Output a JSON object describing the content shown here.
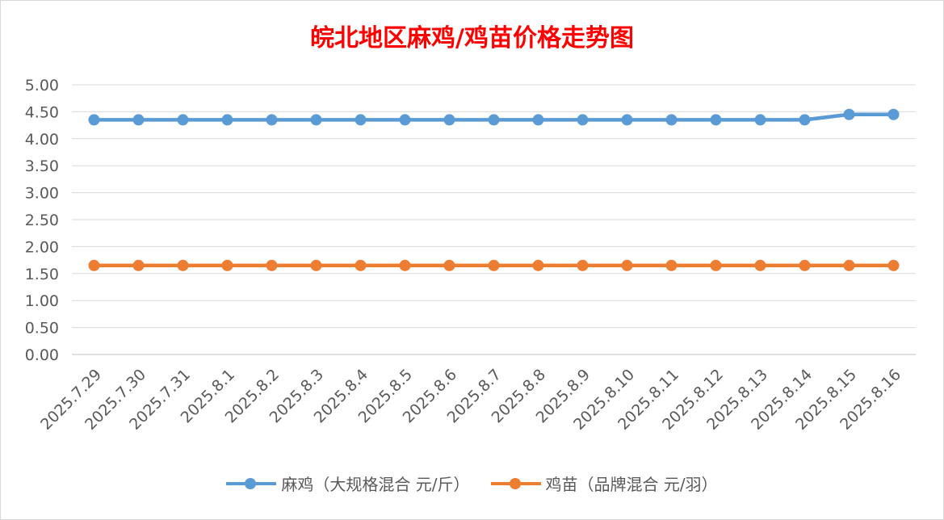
{
  "chart_data": {
    "type": "line",
    "title": "皖北地区麻鸡/鸡苗价格走势图",
    "categories": [
      "2025.7.29",
      "2025.7.30",
      "2025.7.31",
      "2025.8.1",
      "2025.8.2",
      "2025.8.3",
      "2025.8.4",
      "2025.8.5",
      "2025.8.6",
      "2025.8.7",
      "2025.8.8",
      "2025.8.9",
      "2025.8.10",
      "2025.8.11",
      "2025.8.12",
      "2025.8.13",
      "2025.8.14",
      "2025.8.15",
      "2025.8.16"
    ],
    "series": [
      {
        "name": "麻鸡（大规格混合 元/斤）",
        "color": "#5b9bd5",
        "values": [
          4.35,
          4.35,
          4.35,
          4.35,
          4.35,
          4.35,
          4.35,
          4.35,
          4.35,
          4.35,
          4.35,
          4.35,
          4.35,
          4.35,
          4.35,
          4.35,
          4.35,
          4.45,
          4.45
        ]
      },
      {
        "name": "鸡苗（品牌混合 元/羽）",
        "color": "#ed7d31",
        "values": [
          1.65,
          1.65,
          1.65,
          1.65,
          1.65,
          1.65,
          1.65,
          1.65,
          1.65,
          1.65,
          1.65,
          1.65,
          1.65,
          1.65,
          1.65,
          1.65,
          1.65,
          1.65,
          1.65
        ]
      }
    ],
    "yticks": [
      "0.00",
      "0.50",
      "1.00",
      "1.50",
      "2.00",
      "2.50",
      "3.00",
      "3.50",
      "4.00",
      "4.50",
      "5.00"
    ],
    "ylim": [
      0,
      5
    ],
    "xlabel": "",
    "ylabel": "",
    "grid": true,
    "legend": "bottom"
  }
}
